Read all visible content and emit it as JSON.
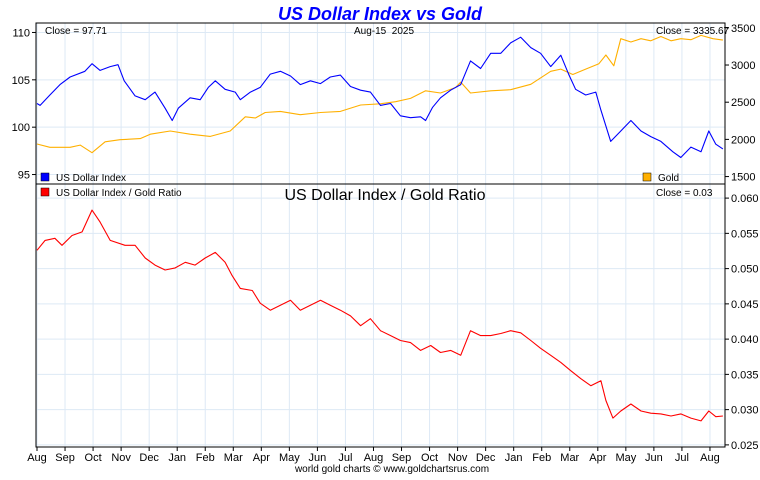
{
  "title": "US Dollar Index vs Gold",
  "date_label": "Aug-15  2025",
  "footer": "world gold charts © www.goldchartsrus.com",
  "colors": {
    "usd": "#0000ff",
    "gold": "#ffb000",
    "ratio": "#ff0000",
    "title": "#0000ff",
    "grid": "#dde9f5"
  },
  "chart_data": [
    {
      "type": "line",
      "title": "US Dollar Index vs Gold",
      "x_unit": "months since Aug 1 2023",
      "x_ticks": [
        "Aug",
        "Sep",
        "Oct",
        "Nov",
        "Dec",
        "Jan",
        "Feb",
        "Mar",
        "Apr",
        "May",
        "Jun",
        "Jul",
        "Aug",
        "Sep",
        "Oct",
        "Nov",
        "Dec",
        "Jan",
        "Feb",
        "Mar",
        "Apr",
        "May",
        "Jun",
        "Jul",
        "Aug"
      ],
      "left_axis": {
        "ylim": [
          94,
          111
        ],
        "ticks": [
          95,
          100,
          105,
          110
        ]
      },
      "right_axis": {
        "ylim": [
          1400,
          3565
        ],
        "ticks": [
          1500,
          2000,
          2500,
          3000,
          3500
        ]
      },
      "close_left": "Close = 97.71",
      "close_right": "Close = 3335.67",
      "series": [
        {
          "name": "US Dollar Index",
          "axis": "left",
          "legend": "bottom-left",
          "points": [
            [
              0,
              102.5
            ],
            [
              0.11,
              102.3
            ],
            [
              0.46,
              103.4
            ],
            [
              0.82,
              104.5
            ],
            [
              1.18,
              105.3
            ],
            [
              1.71,
              105.9
            ],
            [
              1.96,
              106.7
            ],
            [
              2.25,
              106
            ],
            [
              2.61,
              106.4
            ],
            [
              2.89,
              106.6
            ],
            [
              3.11,
              104.9
            ],
            [
              3.5,
              103.3
            ],
            [
              3.86,
              102.9
            ],
            [
              4.21,
              103.7
            ],
            [
              4.57,
              102
            ],
            [
              4.82,
              100.7
            ],
            [
              5.04,
              102
            ],
            [
              5.46,
              103.1
            ],
            [
              5.82,
              102.9
            ],
            [
              6.11,
              104.2
            ],
            [
              6.36,
              104.9
            ],
            [
              6.71,
              104
            ],
            [
              7.07,
              103.7
            ],
            [
              7.25,
              102.9
            ],
            [
              7.61,
              103.7
            ],
            [
              7.96,
              104.2
            ],
            [
              8.32,
              105.6
            ],
            [
              8.68,
              105.9
            ],
            [
              9.04,
              105.4
            ],
            [
              9.39,
              104.5
            ],
            [
              9.75,
              104.9
            ],
            [
              10.11,
              104.6
            ],
            [
              10.46,
              105.3
            ],
            [
              10.82,
              105.5
            ],
            [
              11.18,
              104.3
            ],
            [
              11.54,
              103.9
            ],
            [
              11.89,
              103.7
            ],
            [
              12.25,
              102.3
            ],
            [
              12.61,
              102.5
            ],
            [
              12.96,
              101.2
            ],
            [
              13.32,
              101
            ],
            [
              13.68,
              101.1
            ],
            [
              13.86,
              100.7
            ],
            [
              14.11,
              102.1
            ],
            [
              14.39,
              103.1
            ],
            [
              14.75,
              103.9
            ],
            [
              15.11,
              104.5
            ],
            [
              15.46,
              107
            ],
            [
              15.82,
              106.2
            ],
            [
              16.18,
              107.8
            ],
            [
              16.54,
              107.8
            ],
            [
              16.89,
              108.9
            ],
            [
              17.25,
              109.5
            ],
            [
              17.61,
              108.4
            ],
            [
              17.96,
              107.8
            ],
            [
              18.32,
              106.4
            ],
            [
              18.68,
              107.6
            ],
            [
              18.96,
              105.6
            ],
            [
              19.21,
              104
            ],
            [
              19.57,
              103.4
            ],
            [
              19.93,
              103.7
            ],
            [
              20.11,
              101.8
            ],
            [
              20.46,
              98.5
            ],
            [
              20.82,
              99.6
            ],
            [
              21.18,
              100.7
            ],
            [
              21.54,
              99.6
            ],
            [
              21.89,
              99
            ],
            [
              22.25,
              98.5
            ],
            [
              22.68,
              97.4
            ],
            [
              22.96,
              96.8
            ],
            [
              23.32,
              97.9
            ],
            [
              23.68,
              97.4
            ],
            [
              23.96,
              99.6
            ],
            [
              24.21,
              98.2
            ],
            [
              24.46,
              97.71
            ]
          ]
        },
        {
          "name": "Gold",
          "axis": "right",
          "legend": "bottom-right",
          "points": [
            [
              0,
              1938
            ],
            [
              0.46,
              1894
            ],
            [
              1.18,
              1894
            ],
            [
              1.54,
              1923
            ],
            [
              1.96,
              1821
            ],
            [
              2.43,
              1967
            ],
            [
              2.96,
              1996
            ],
            [
              3.68,
              2011
            ],
            [
              4.04,
              2069
            ],
            [
              4.75,
              2113
            ],
            [
              5.46,
              2069
            ],
            [
              6.18,
              2040
            ],
            [
              6.89,
              2113
            ],
            [
              7.43,
              2303
            ],
            [
              7.79,
              2288
            ],
            [
              8.14,
              2361
            ],
            [
              8.68,
              2376
            ],
            [
              9.39,
              2332
            ],
            [
              10.11,
              2361
            ],
            [
              10.82,
              2376
            ],
            [
              11.54,
              2463
            ],
            [
              12.25,
              2478
            ],
            [
              12.79,
              2507
            ],
            [
              13.32,
              2551
            ],
            [
              13.86,
              2653
            ],
            [
              14.39,
              2624
            ],
            [
              14.93,
              2697
            ],
            [
              15.11,
              2770
            ],
            [
              15.46,
              2624
            ],
            [
              16.18,
              2653
            ],
            [
              16.89,
              2668
            ],
            [
              17.61,
              2741
            ],
            [
              18.32,
              2916
            ],
            [
              18.68,
              2945
            ],
            [
              19.11,
              2872
            ],
            [
              19.57,
              2945
            ],
            [
              20.04,
              3018
            ],
            [
              20.29,
              3135
            ],
            [
              20.57,
              2989
            ],
            [
              20.82,
              3354
            ],
            [
              21.18,
              3310
            ],
            [
              21.54,
              3354
            ],
            [
              21.89,
              3325
            ],
            [
              22.25,
              3383
            ],
            [
              22.61,
              3325
            ],
            [
              22.96,
              3354
            ],
            [
              23.32,
              3340
            ],
            [
              23.68,
              3398
            ],
            [
              24.11,
              3354
            ],
            [
              24.46,
              3335.67
            ]
          ]
        }
      ]
    },
    {
      "type": "line",
      "title": "US Dollar Index / Gold Ratio",
      "close_right": "Close = 0.03",
      "right_axis": {
        "ylim": [
          0.0247,
          0.062
        ],
        "ticks": [
          "0.025",
          "0.030",
          "0.035",
          "0.040",
          "0.045",
          "0.050",
          "0.055",
          "0.060"
        ]
      },
      "series": [
        {
          "name": "US Dollar Index / Gold Ratio",
          "legend": "top-left",
          "points": [
            [
              0,
              0.0526
            ],
            [
              0.29,
              0.054
            ],
            [
              0.64,
              0.0543
            ],
            [
              0.89,
              0.0533
            ],
            [
              1.25,
              0.0547
            ],
            [
              1.61,
              0.0552
            ],
            [
              1.96,
              0.0583
            ],
            [
              2.25,
              0.0566
            ],
            [
              2.61,
              0.054
            ],
            [
              3.14,
              0.0533
            ],
            [
              3.5,
              0.0533
            ],
            [
              3.86,
              0.0515
            ],
            [
              4.21,
              0.0505
            ],
            [
              4.57,
              0.0498
            ],
            [
              4.93,
              0.0501
            ],
            [
              5.29,
              0.0509
            ],
            [
              5.64,
              0.0505
            ],
            [
              6.0,
              0.0515
            ],
            [
              6.36,
              0.0523
            ],
            [
              6.71,
              0.0509
            ],
            [
              6.96,
              0.049
            ],
            [
              7.25,
              0.0472
            ],
            [
              7.68,
              0.0469
            ],
            [
              7.96,
              0.0451
            ],
            [
              8.32,
              0.0441
            ],
            [
              8.68,
              0.0448
            ],
            [
              9.04,
              0.0455
            ],
            [
              9.39,
              0.0441
            ],
            [
              9.75,
              0.0448
            ],
            [
              10.11,
              0.0455
            ],
            [
              10.46,
              0.0448
            ],
            [
              10.82,
              0.0441
            ],
            [
              11.18,
              0.0433
            ],
            [
              11.54,
              0.0419
            ],
            [
              11.89,
              0.0429
            ],
            [
              12.25,
              0.0412
            ],
            [
              12.61,
              0.0405
            ],
            [
              12.96,
              0.0398
            ],
            [
              13.32,
              0.0395
            ],
            [
              13.68,
              0.0384
            ],
            [
              14.04,
              0.0391
            ],
            [
              14.39,
              0.0381
            ],
            [
              14.75,
              0.0384
            ],
            [
              15.11,
              0.0377
            ],
            [
              15.46,
              0.0412
            ],
            [
              15.82,
              0.0405
            ],
            [
              16.18,
              0.0405
            ],
            [
              16.54,
              0.0408
            ],
            [
              16.89,
              0.0412
            ],
            [
              17.25,
              0.0409
            ],
            [
              17.61,
              0.0398
            ],
            [
              17.96,
              0.0387
            ],
            [
              18.32,
              0.0377
            ],
            [
              18.68,
              0.0367
            ],
            [
              19.04,
              0.0355
            ],
            [
              19.39,
              0.0344
            ],
            [
              19.75,
              0.0334
            ],
            [
              20.11,
              0.0341
            ],
            [
              20.29,
              0.0313
            ],
            [
              20.54,
              0.0288
            ],
            [
              20.82,
              0.0298
            ],
            [
              21.18,
              0.0308
            ],
            [
              21.54,
              0.0298
            ],
            [
              21.89,
              0.0295
            ],
            [
              22.25,
              0.0294
            ],
            [
              22.61,
              0.0291
            ],
            [
              22.96,
              0.0294
            ],
            [
              23.32,
              0.0288
            ],
            [
              23.68,
              0.0284
            ],
            [
              23.96,
              0.0298
            ],
            [
              24.21,
              0.029
            ],
            [
              24.46,
              0.0291
            ]
          ]
        }
      ]
    }
  ]
}
